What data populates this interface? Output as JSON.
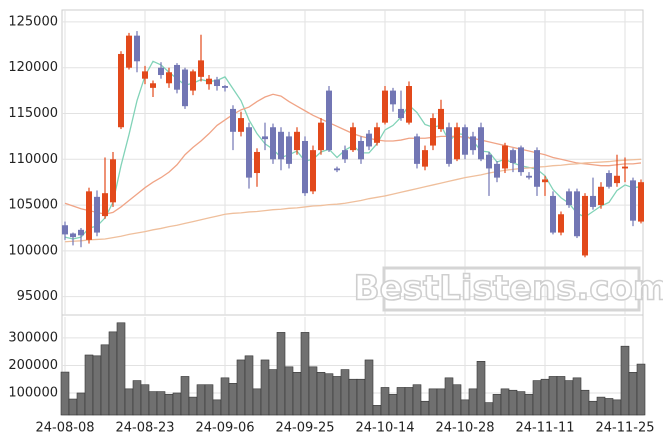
{
  "chart_data": {
    "type": "candlestick",
    "watermark": "BestListens.com",
    "categories": [
      "24-08-08",
      null,
      null,
      null,
      null,
      null,
      null,
      null,
      null,
      null,
      "24-08-23",
      null,
      null,
      null,
      null,
      null,
      null,
      null,
      null,
      null,
      "24-09-06",
      null,
      null,
      null,
      null,
      null,
      null,
      null,
      null,
      null,
      "24-09-25",
      null,
      null,
      null,
      null,
      null,
      null,
      null,
      null,
      null,
      "24-10-14",
      null,
      null,
      null,
      null,
      null,
      null,
      null,
      null,
      null,
      "24-10-28",
      null,
      null,
      null,
      null,
      null,
      null,
      null,
      null,
      null,
      "24-11-11",
      null,
      null,
      null,
      null,
      null,
      null,
      null,
      null,
      null,
      "24-11-25",
      null,
      null
    ],
    "open": [
      102800,
      101900,
      102300,
      101200,
      105900,
      103800,
      105300,
      113500,
      120000,
      123500,
      118800,
      117800,
      120000,
      118300,
      120300,
      119800,
      117500,
      119000,
      118200,
      118700,
      118000,
      115500,
      113000,
      113500,
      108500,
      112500,
      113500,
      113000,
      112500,
      111000,
      112000,
      106500,
      111000,
      117500,
      109000,
      111000,
      111000,
      112000,
      112800,
      111800,
      114000,
      117500,
      115500,
      114000,
      112500,
      109200,
      111500,
      113300,
      113500,
      110000,
      113500,
      112500,
      113500,
      110500,
      109500,
      109000,
      111000,
      111300,
      108200,
      111000,
      107500,
      106000,
      102000,
      106500,
      106500,
      99500,
      106000,
      105000,
      108500,
      107400,
      109000,
      107700,
      103200
    ],
    "high": [
      103200,
      102000,
      102500,
      106900,
      106600,
      110200,
      110800,
      121800,
      123800,
      124000,
      120200,
      118600,
      120600,
      120000,
      120500,
      120000,
      119800,
      123600,
      119200,
      119000,
      118100,
      115900,
      115200,
      114000,
      111200,
      114000,
      113900,
      113500,
      113000,
      113500,
      112500,
      111500,
      114500,
      118000,
      109200,
      111500,
      114000,
      112500,
      113200,
      114000,
      118000,
      117800,
      117500,
      118500,
      112800,
      111500,
      115000,
      116500,
      114000,
      114000,
      113800,
      113000,
      114000,
      110800,
      109800,
      111800,
      111200,
      111500,
      108600,
      111300,
      108200,
      106500,
      104300,
      106800,
      106800,
      106300,
      108000,
      107500,
      108800,
      110500,
      110200,
      108000,
      107800
    ],
    "low": [
      101200,
      100600,
      100400,
      100800,
      101600,
      103500,
      104800,
      113300,
      119800,
      119500,
      118200,
      116800,
      118800,
      117800,
      117200,
      115500,
      117000,
      118500,
      117600,
      117500,
      117400,
      111000,
      112500,
      106800,
      107000,
      111000,
      109500,
      108800,
      109000,
      110500,
      106000,
      106200,
      110500,
      110800,
      108600,
      109600,
      110800,
      109500,
      111000,
      111500,
      113800,
      115200,
      114200,
      113800,
      109000,
      108800,
      111000,
      113000,
      109200,
      109800,
      110000,
      110500,
      109800,
      106000,
      107500,
      108500,
      108600,
      108200,
      107800,
      106000,
      106000,
      101800,
      101700,
      104700,
      101400,
      99300,
      104500,
      104600,
      106800,
      107000,
      107500,
      102700,
      103000
    ],
    "close": [
      101800,
      101500,
      101700,
      106500,
      102000,
      106300,
      110000,
      121500,
      123500,
      120700,
      119600,
      118300,
      119200,
      119500,
      117600,
      115800,
      119600,
      120800,
      118800,
      118000,
      117800,
      113000,
      114500,
      108000,
      110800,
      112200,
      110000,
      110000,
      109500,
      113000,
      106300,
      111000,
      114000,
      111000,
      108800,
      110000,
      113500,
      110000,
      111400,
      113500,
      117500,
      116000,
      114500,
      118000,
      109500,
      111000,
      114500,
      115500,
      109500,
      113500,
      110500,
      111000,
      110000,
      109000,
      108000,
      111500,
      109600,
      108600,
      108000,
      107000,
      107800,
      102000,
      104000,
      105000,
      101600,
      106000,
      104800,
      107000,
      107000,
      108200,
      109200,
      103300,
      107500
    ],
    "volume": [
      176000,
      78000,
      100000,
      238000,
      235000,
      275000,
      322000,
      355000,
      115000,
      145000,
      130000,
      105000,
      105000,
      95000,
      100000,
      160000,
      85000,
      130000,
      130000,
      75000,
      155000,
      135000,
      220000,
      235000,
      115000,
      220000,
      185000,
      320000,
      195000,
      175000,
      320000,
      195000,
      175000,
      170000,
      160000,
      185000,
      150000,
      150000,
      220000,
      55000,
      120000,
      95000,
      120000,
      120000,
      130000,
      70000,
      115000,
      115000,
      155000,
      130000,
      75000,
      115000,
      215000,
      65000,
      95000,
      115000,
      110000,
      105000,
      95000,
      145000,
      150000,
      160000,
      160000,
      145000,
      155000,
      110000,
      70000,
      85000,
      80000,
      75000,
      270000,
      175000,
      205000
    ],
    "up_color": "#e2491b",
    "down_color": "#7276b4",
    "volume_color": "#707070",
    "lines": [
      {
        "color": "#82d3b8",
        "values": [
          101500,
          101300,
          101500,
          102500,
          102700,
          103600,
          105300,
          109300,
          112700,
          116400,
          119100,
          120700,
          120300,
          119500,
          118800,
          118100,
          118300,
          118700,
          118500,
          118600,
          119000,
          117700,
          116400,
          114300,
          112800,
          111700,
          111100,
          110200,
          110500,
          110900,
          109800,
          110000,
          110800,
          111100,
          110200,
          111000,
          111500,
          110700,
          110700,
          111700,
          113200,
          113700,
          114600,
          115900,
          115100,
          113800,
          113500,
          113700,
          112000,
          112800,
          112700,
          112000,
          110900,
          110800,
          109700,
          110000,
          109600,
          109300,
          109100,
          108900,
          108200,
          106700,
          105800,
          105200,
          104100,
          103700,
          104300,
          104900,
          105300,
          106600,
          107200,
          106900,
          107000
        ]
      },
      {
        "color": "#f0a486",
        "values": [
          105200,
          104900,
          104600,
          104400,
          104200,
          104000,
          104200,
          104800,
          105500,
          106200,
          106900,
          107500,
          108000,
          108600,
          109400,
          110500,
          111300,
          112000,
          112800,
          113700,
          114300,
          114900,
          115400,
          115700,
          116300,
          116800,
          117100,
          116900,
          116300,
          115800,
          115300,
          114800,
          114400,
          114000,
          113600,
          113200,
          112800,
          112500,
          112300,
          112100,
          112000,
          112000,
          112100,
          112300,
          112300,
          112300,
          112400,
          112500,
          112500,
          112500,
          112400,
          112300,
          112100,
          111900,
          111700,
          111500,
          111300,
          111100,
          110900,
          110700,
          110500,
          110200,
          110000,
          109800,
          109600,
          109500,
          109400,
          109300,
          109300,
          109400,
          109500,
          109500,
          109600
        ]
      },
      {
        "color": "#efbf9c",
        "values": [
          101000,
          101050,
          101100,
          101200,
          101250,
          101300,
          101450,
          101600,
          101800,
          101950,
          102100,
          102300,
          102450,
          102650,
          102800,
          103000,
          103200,
          103400,
          103600,
          103800,
          104000,
          104100,
          104150,
          104250,
          104300,
          104400,
          104500,
          104550,
          104650,
          104700,
          104800,
          104900,
          104950,
          105050,
          105100,
          105200,
          105350,
          105500,
          105700,
          105850,
          106000,
          106200,
          106400,
          106600,
          106800,
          107000,
          107200,
          107400,
          107600,
          107800,
          108000,
          108150,
          108300,
          108500,
          108650,
          108800,
          108900,
          109000,
          109050,
          109150,
          109200,
          109300,
          109350,
          109450,
          109500,
          109600,
          109650,
          109700,
          109750,
          109850,
          109900,
          109950,
          110000
        ]
      }
    ],
    "ylim": [
      93000,
      126300
    ],
    "yticks": [
      95000,
      100000,
      105000,
      110000,
      115000,
      120000,
      125000
    ],
    "vlim": [
      20000,
      376000
    ],
    "vticks": [
      100000,
      200000,
      300000
    ],
    "grid": true
  }
}
